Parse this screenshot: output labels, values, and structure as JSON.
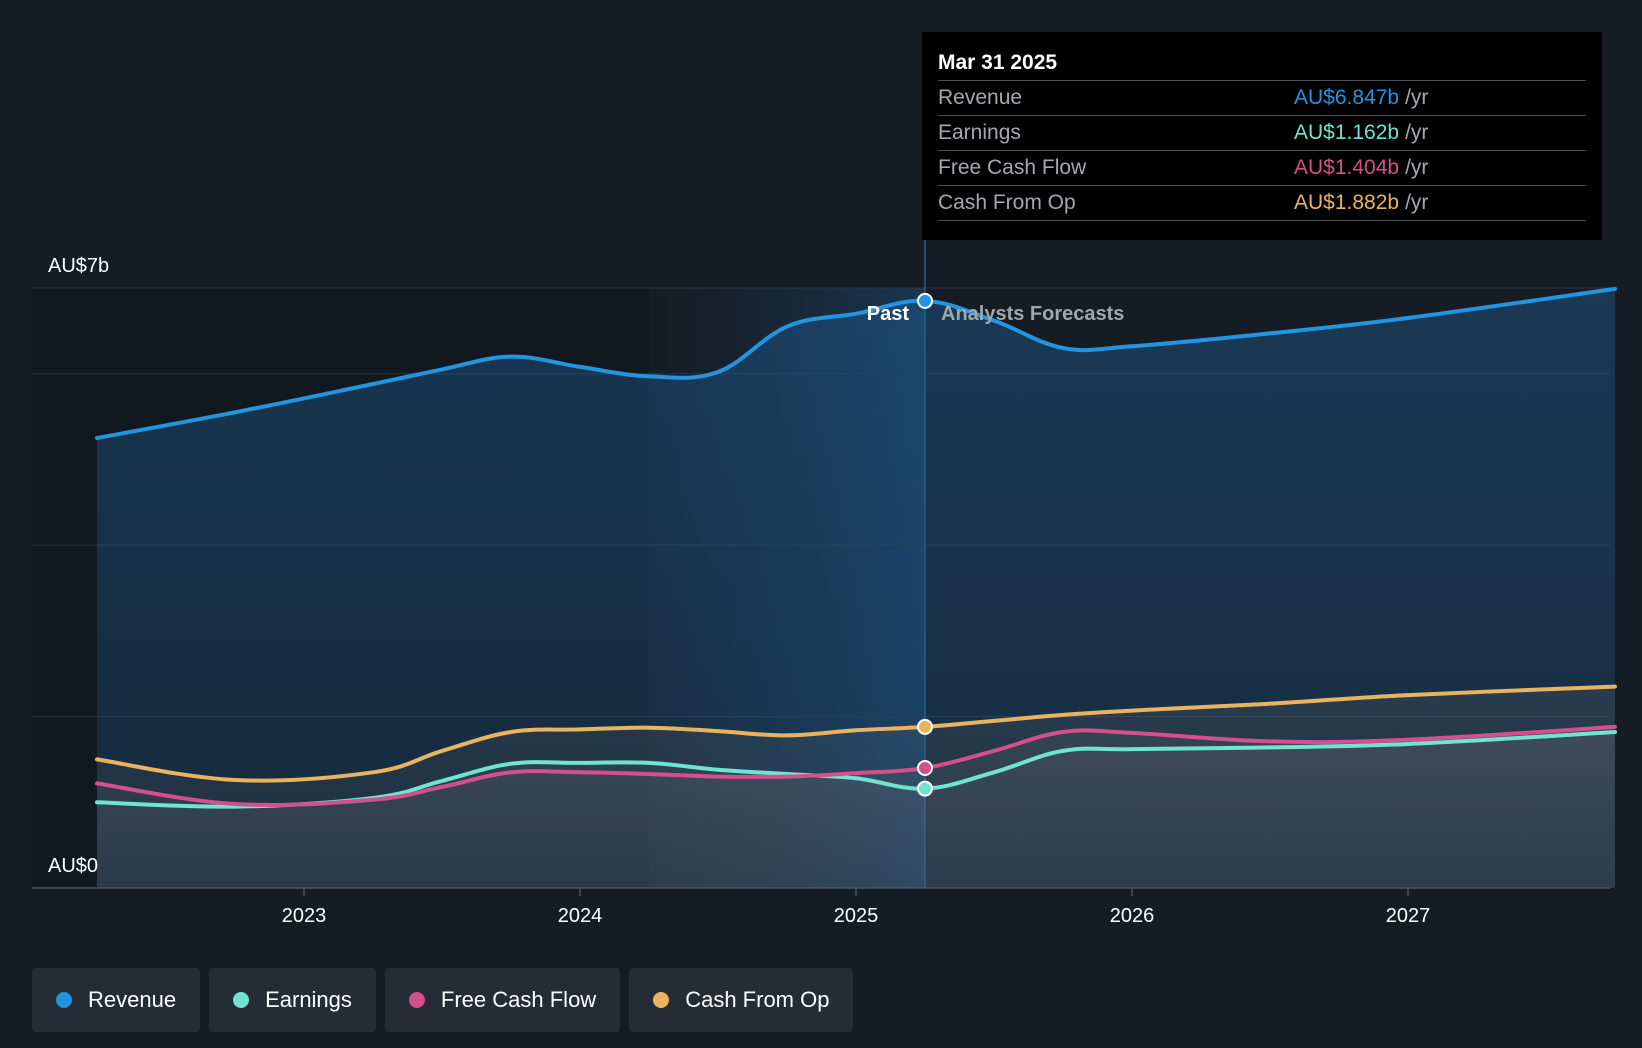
{
  "chart_data": {
    "type": "area",
    "y_axis": {
      "top_label": "AU$7b",
      "bottom_label": "AU$0",
      "ylim": [
        0,
        7
      ]
    },
    "x_axis": {
      "ticks": [
        "2023",
        "2024",
        "2025",
        "2026",
        "2027"
      ],
      "tick_values": [
        2023,
        2024,
        2025,
        2026,
        2027
      ],
      "xlim": [
        2022.0,
        2027.75
      ]
    },
    "divider": {
      "x": 2025.25,
      "past_label": "Past",
      "forecast_label": "Analysts Forecasts"
    },
    "series": [
      {
        "name": "Revenue",
        "color": "#2394df",
        "points": [
          [
            2022.25,
            5.25
          ],
          [
            2022.75,
            5.55
          ],
          [
            2023.25,
            5.88
          ],
          [
            2023.5,
            6.05
          ],
          [
            2023.75,
            6.2
          ],
          [
            2024.0,
            6.08
          ],
          [
            2024.25,
            5.97
          ],
          [
            2024.5,
            6.02
          ],
          [
            2024.75,
            6.55
          ],
          [
            2025.0,
            6.7
          ],
          [
            2025.25,
            6.85
          ],
          [
            2025.5,
            6.62
          ],
          [
            2025.75,
            6.3
          ],
          [
            2026.0,
            6.32
          ],
          [
            2026.5,
            6.47
          ],
          [
            2027.0,
            6.65
          ],
          [
            2027.75,
            6.99
          ]
        ]
      },
      {
        "name": "Earnings",
        "color": "#71e3d1",
        "points": [
          [
            2022.25,
            1.0
          ],
          [
            2022.75,
            0.95
          ],
          [
            2023.25,
            1.05
          ],
          [
            2023.5,
            1.25
          ],
          [
            2023.75,
            1.45
          ],
          [
            2024.0,
            1.46
          ],
          [
            2024.25,
            1.46
          ],
          [
            2024.5,
            1.38
          ],
          [
            2024.75,
            1.33
          ],
          [
            2025.0,
            1.28
          ],
          [
            2025.25,
            1.16
          ],
          [
            2025.5,
            1.35
          ],
          [
            2025.75,
            1.6
          ],
          [
            2026.0,
            1.62
          ],
          [
            2026.5,
            1.64
          ],
          [
            2027.0,
            1.68
          ],
          [
            2027.75,
            1.82
          ]
        ]
      },
      {
        "name": "Free Cash Flow",
        "color": "#d4508c",
        "points": [
          [
            2022.25,
            1.22
          ],
          [
            2022.75,
            0.98
          ],
          [
            2023.25,
            1.03
          ],
          [
            2023.5,
            1.18
          ],
          [
            2023.75,
            1.35
          ],
          [
            2024.0,
            1.35
          ],
          [
            2024.25,
            1.33
          ],
          [
            2024.5,
            1.3
          ],
          [
            2024.75,
            1.3
          ],
          [
            2025.0,
            1.34
          ],
          [
            2025.25,
            1.4
          ],
          [
            2025.5,
            1.6
          ],
          [
            2025.75,
            1.82
          ],
          [
            2026.0,
            1.81
          ],
          [
            2026.5,
            1.71
          ],
          [
            2027.0,
            1.73
          ],
          [
            2027.75,
            1.88
          ]
        ]
      },
      {
        "name": "Cash From Op",
        "color": "#e9b35f",
        "points": [
          [
            2022.25,
            1.5
          ],
          [
            2022.75,
            1.26
          ],
          [
            2023.25,
            1.35
          ],
          [
            2023.5,
            1.6
          ],
          [
            2023.75,
            1.82
          ],
          [
            2024.0,
            1.85
          ],
          [
            2024.25,
            1.87
          ],
          [
            2024.5,
            1.83
          ],
          [
            2024.75,
            1.78
          ],
          [
            2025.0,
            1.84
          ],
          [
            2025.25,
            1.88
          ],
          [
            2025.5,
            1.95
          ],
          [
            2025.75,
            2.02
          ],
          [
            2026.0,
            2.07
          ],
          [
            2026.5,
            2.15
          ],
          [
            2027.0,
            2.25
          ],
          [
            2027.75,
            2.35
          ]
        ]
      }
    ]
  },
  "tooltip": {
    "date": "Mar 31 2025",
    "unit": "/yr",
    "rows": [
      {
        "label": "Revenue",
        "value": "AU$6.847b",
        "color": "#2394df"
      },
      {
        "label": "Earnings",
        "value": "AU$1.162b",
        "color": "#71e3d1"
      },
      {
        "label": "Free Cash Flow",
        "value": "AU$1.404b",
        "color": "#d4508c"
      },
      {
        "label": "Cash From Op",
        "value": "AU$1.882b",
        "color": "#e9b35f"
      }
    ]
  },
  "legend": [
    {
      "label": "Revenue",
      "color": "#2394df"
    },
    {
      "label": "Earnings",
      "color": "#71e3d1"
    },
    {
      "label": "Free Cash Flow",
      "color": "#d4508c"
    },
    {
      "label": "Cash From Op",
      "color": "#e9b35f"
    }
  ]
}
